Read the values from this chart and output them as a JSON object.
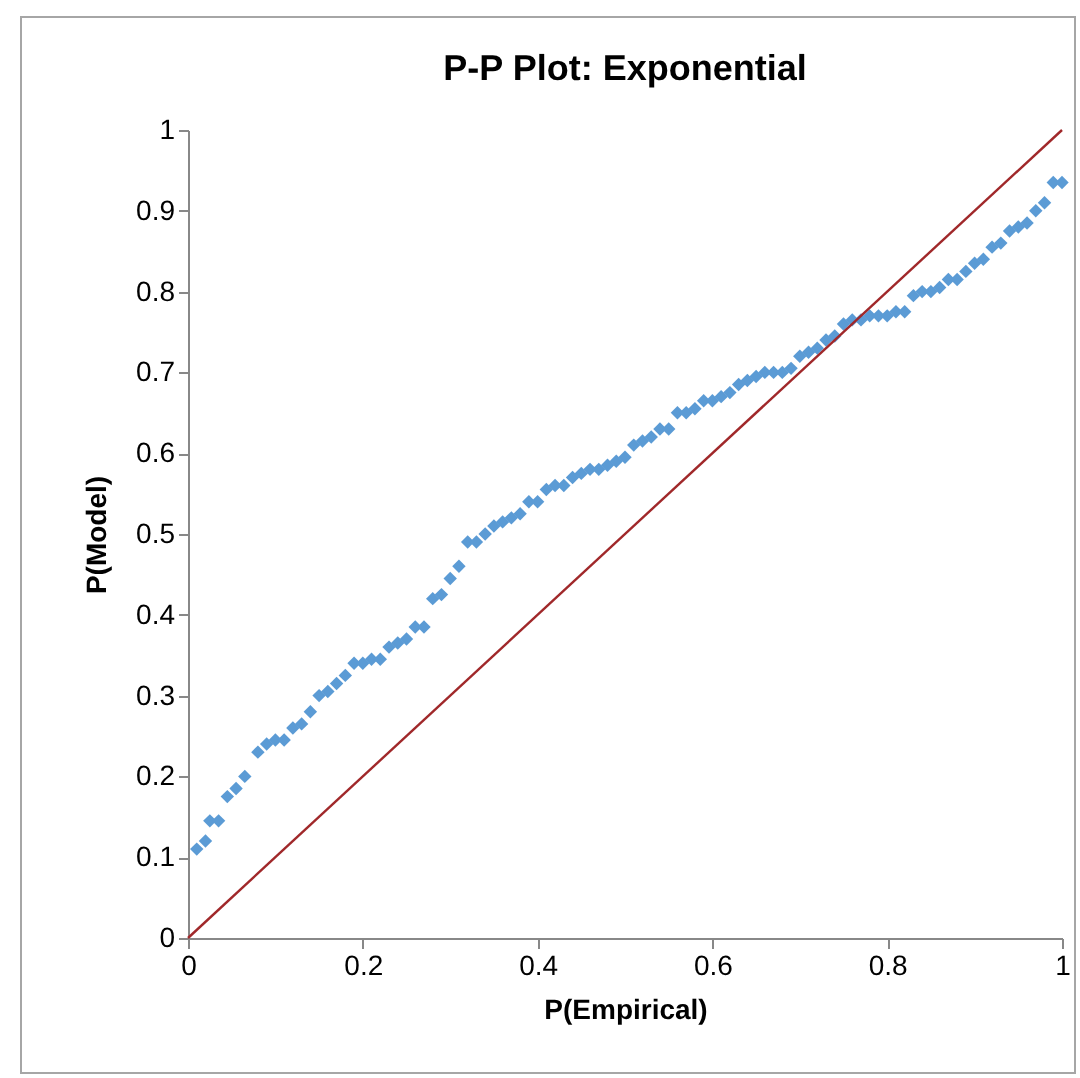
{
  "chart_data": {
    "type": "scatter",
    "title": "P-P Plot: Exponential",
    "xlabel": "P(Empirical)",
    "ylabel": "P(Model)",
    "xlim": [
      0,
      1
    ],
    "ylim": [
      0,
      1
    ],
    "xticks": [
      0,
      0.2,
      0.4,
      0.6,
      0.8,
      1
    ],
    "yticks": [
      0,
      0.1,
      0.2,
      0.3,
      0.4,
      0.5,
      0.6,
      0.7,
      0.8,
      0.9,
      1
    ],
    "grid": false,
    "series": [
      {
        "marker": "diamond",
        "color": "#5b9bd5",
        "x": [
          0.01,
          0.02,
          0.025,
          0.035,
          0.045,
          0.055,
          0.065,
          0.08,
          0.09,
          0.1,
          0.11,
          0.12,
          0.13,
          0.14,
          0.15,
          0.16,
          0.17,
          0.18,
          0.19,
          0.2,
          0.21,
          0.22,
          0.23,
          0.24,
          0.25,
          0.26,
          0.27,
          0.28,
          0.29,
          0.3,
          0.31,
          0.32,
          0.33,
          0.34,
          0.35,
          0.36,
          0.37,
          0.38,
          0.39,
          0.4,
          0.41,
          0.42,
          0.43,
          0.44,
          0.45,
          0.46,
          0.47,
          0.48,
          0.49,
          0.5,
          0.51,
          0.52,
          0.53,
          0.54,
          0.55,
          0.56,
          0.57,
          0.58,
          0.59,
          0.6,
          0.61,
          0.62,
          0.63,
          0.64,
          0.65,
          0.66,
          0.67,
          0.68,
          0.69,
          0.7,
          0.71,
          0.72,
          0.73,
          0.74,
          0.75,
          0.76,
          0.77,
          0.78,
          0.79,
          0.8,
          0.81,
          0.82,
          0.83,
          0.84,
          0.85,
          0.86,
          0.87,
          0.88,
          0.89,
          0.9,
          0.91,
          0.92,
          0.93,
          0.94,
          0.95,
          0.96,
          0.97,
          0.98,
          0.99,
          1.0
        ],
        "values": [
          0.11,
          0.12,
          0.145,
          0.145,
          0.175,
          0.185,
          0.2,
          0.23,
          0.24,
          0.245,
          0.245,
          0.26,
          0.265,
          0.28,
          0.3,
          0.305,
          0.315,
          0.325,
          0.34,
          0.34,
          0.345,
          0.345,
          0.36,
          0.365,
          0.37,
          0.385,
          0.385,
          0.42,
          0.425,
          0.445,
          0.46,
          0.49,
          0.49,
          0.5,
          0.51,
          0.515,
          0.52,
          0.525,
          0.54,
          0.54,
          0.555,
          0.56,
          0.56,
          0.57,
          0.575,
          0.58,
          0.58,
          0.585,
          0.59,
          0.595,
          0.61,
          0.615,
          0.62,
          0.63,
          0.63,
          0.65,
          0.65,
          0.655,
          0.665,
          0.665,
          0.67,
          0.675,
          0.685,
          0.69,
          0.695,
          0.7,
          0.7,
          0.7,
          0.705,
          0.72,
          0.725,
          0.73,
          0.74,
          0.745,
          0.76,
          0.765,
          0.765,
          0.77,
          0.77,
          0.77,
          0.775,
          0.775,
          0.795,
          0.8,
          0.8,
          0.805,
          0.815,
          0.815,
          0.825,
          0.835,
          0.84,
          0.855,
          0.86,
          0.875,
          0.88,
          0.885,
          0.9,
          0.91,
          0.935,
          0.935
        ]
      },
      {
        "type": "line",
        "color": "#a0282a",
        "x": [
          0,
          1
        ],
        "values": [
          0,
          1
        ]
      }
    ]
  }
}
